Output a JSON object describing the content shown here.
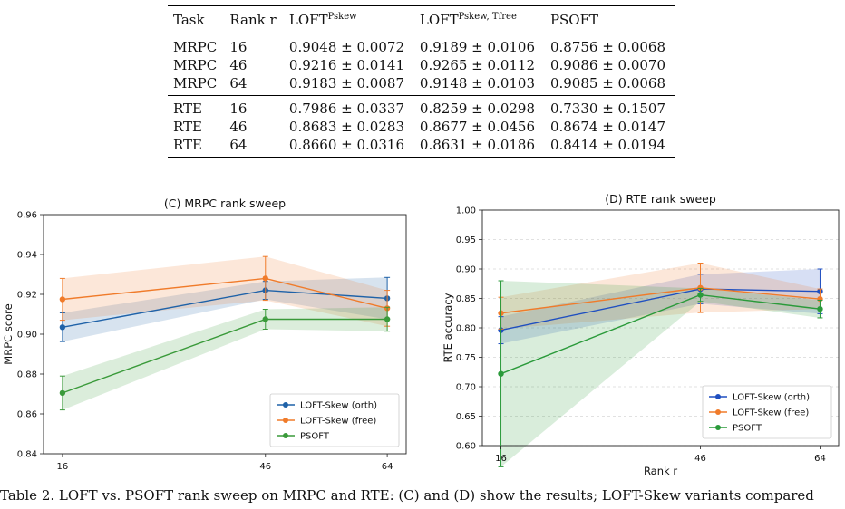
{
  "table": {
    "headers": [
      "Task",
      "Rank r",
      "LOFT",
      "LOFT",
      "PSOFT"
    ],
    "header_sups": [
      "",
      "",
      "Pskew",
      "Pskew, Tfree",
      ""
    ],
    "groups": [
      [
        {
          "task": "MRPC",
          "rank": "16",
          "c1": "0.9048 ± 0.0072",
          "c2": "0.9189 ± 0.0106",
          "c3": "0.8756 ± 0.0068",
          "bold": 2
        },
        {
          "task": "MRPC",
          "rank": "46",
          "c1": "0.9216 ± 0.0141",
          "c2": "0.9265 ± 0.0112",
          "c3": "0.9086 ± 0.0070",
          "bold": 2
        },
        {
          "task": "MRPC",
          "rank": "64",
          "c1": "0.9183 ± 0.0087",
          "c2": "0.9148 ± 0.0103",
          "c3": "0.9085 ± 0.0068",
          "bold": 1
        }
      ],
      [
        {
          "task": "RTE",
          "rank": "16",
          "c1": "0.7986 ± 0.0337",
          "c2": "0.8259 ± 0.0298",
          "c3": "0.7330 ± 0.1507",
          "bold": 2
        },
        {
          "task": "RTE",
          "rank": "46",
          "c1": "0.8683 ± 0.0283",
          "c2": "0.8677 ± 0.0456",
          "c3": "0.8674 ± 0.0147",
          "bold": 1
        },
        {
          "task": "RTE",
          "rank": "64",
          "c1": "0.8660 ± 0.0316",
          "c2": "0.8631 ± 0.0186",
          "c3": "0.8414 ± 0.0194",
          "bold": 1
        }
      ]
    ]
  },
  "chart_data": [
    {
      "type": "line",
      "title": "(C) MRPC rank sweep",
      "xlabel": "Rank r",
      "ylabel": "MRPC score",
      "x": [
        16,
        46,
        64
      ],
      "xticks": [
        "16",
        "46",
        "64"
      ],
      "ylim": [
        0.84,
        0.96
      ],
      "yticks": [
        0.84,
        0.86,
        0.88,
        0.9,
        0.92,
        0.94,
        0.96
      ],
      "ytick_labels": [
        "0.84",
        "0.86",
        "0.88",
        "0.90",
        "0.92",
        "0.94",
        "0.96"
      ],
      "grid": false,
      "legend_position": "lower-right",
      "series": [
        {
          "name": "LOFT-Skew (orth)",
          "color": "#1f62a8",
          "values": [
            0.9035,
            0.922,
            0.918
          ],
          "err": [
            0.0072,
            0.0045,
            0.0105
          ]
        },
        {
          "name": "LOFT-Skew (free)",
          "color": "#f07b2a",
          "values": [
            0.9175,
            0.928,
            0.913
          ],
          "err": [
            0.0105,
            0.011,
            0.009
          ]
        },
        {
          "name": "PSOFT",
          "color": "#3a9a3a",
          "values": [
            0.8705,
            0.9075,
            0.9075
          ],
          "err": [
            0.0085,
            0.005,
            0.006
          ]
        }
      ]
    },
    {
      "type": "line",
      "title": "(D) RTE rank sweep",
      "xlabel": "Rank r",
      "ylabel": "RTE accuracy",
      "x": [
        16,
        46,
        64
      ],
      "xticks": [
        "16",
        "46",
        "64"
      ],
      "ylim": [
        0.6,
        1.0
      ],
      "yticks": [
        0.6,
        0.65,
        0.7,
        0.75,
        0.8,
        0.85,
        0.9,
        0.95,
        1.0
      ],
      "ytick_labels": [
        "0.60",
        "0.65",
        "0.70",
        "0.75",
        "0.80",
        "0.85",
        "0.90",
        "0.95",
        "1.00"
      ],
      "grid": true,
      "legend_position": "lower-right",
      "series": [
        {
          "name": "LOFT-Skew (orth)",
          "color": "#1f4fc0",
          "values": [
            0.796,
            0.866,
            0.862
          ],
          "err": [
            0.023,
            0.025,
            0.038
          ]
        },
        {
          "name": "LOFT-Skew (free)",
          "color": "#f07b2a",
          "values": [
            0.825,
            0.868,
            0.849
          ],
          "err": [
            0.027,
            0.042,
            0.017
          ]
        },
        {
          "name": "PSOFT",
          "color": "#2a9a3a",
          "values": [
            0.722,
            0.856,
            0.832
          ],
          "err": [
            0.158,
            0.011,
            0.015
          ]
        }
      ]
    }
  ],
  "caption": "Table 2. LOFT vs. PSOFT rank sweep on MRPC and RTE: (C) and (D) show the results; LOFT-Skew variants compared"
}
